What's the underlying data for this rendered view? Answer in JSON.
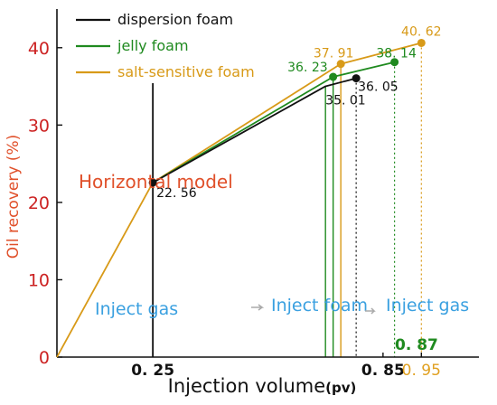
{
  "chart_data": {
    "type": "line",
    "title": "",
    "xlabel": "Injection volume",
    "xlabel_unit": "(pv)",
    "ylabel": "Oil recovery (%)",
    "xlim": [
      0,
      1.1
    ],
    "ylim": [
      0,
      45
    ],
    "xticks": [
      {
        "value": 0.25,
        "label": "0. 25",
        "color": "#111111"
      },
      {
        "value": 0.85,
        "label": "0. 85",
        "color": "#111111"
      },
      {
        "value": 0.95,
        "label": "0. 95",
        "color": "#e0a020"
      }
    ],
    "yticks": [
      0,
      10,
      20,
      30,
      40
    ],
    "legend": {
      "placement": "top-center",
      "entries": [
        {
          "label": "dispersion foam",
          "color": "#111111"
        },
        {
          "label": "jelly foam",
          "color": "#1f8a1f"
        },
        {
          "label": "salt-sensitive foam",
          "color": "#d89a18"
        }
      ]
    },
    "series": [
      {
        "name": "dispersion foam",
        "color": "#111111",
        "points": [
          [
            0.25,
            22.56
          ],
          [
            0.7,
            35.01
          ],
          [
            0.78,
            36.05
          ]
        ],
        "markers": [
          [
            0.25,
            22.56
          ],
          [
            0.78,
            36.05
          ]
        ]
      },
      {
        "name": "jelly foam",
        "color": "#1f8a1f",
        "points": [
          [
            0.25,
            22.56
          ],
          [
            0.72,
            36.23
          ],
          [
            0.88,
            38.14
          ]
        ],
        "markers": [
          [
            0.72,
            36.23
          ],
          [
            0.88,
            38.14
          ]
        ]
      },
      {
        "name": "salt-sensitive foam",
        "color": "#d89a18",
        "points": [
          [
            0.0,
            0.0
          ],
          [
            0.25,
            22.56
          ],
          [
            0.74,
            37.91
          ],
          [
            0.95,
            40.62
          ]
        ],
        "markers": [
          [
            0.74,
            37.91
          ],
          [
            0.95,
            40.62
          ]
        ]
      }
    ],
    "point_labels": [
      {
        "text": "22. 56",
        "x": 0.25,
        "y": 22.56,
        "color": "#111111"
      },
      {
        "text": "35. 01",
        "x": 0.7,
        "y": 35.01,
        "color": "#111111"
      },
      {
        "text": "36. 05",
        "x": 0.78,
        "y": 36.05,
        "color": "#111111"
      },
      {
        "text": "36. 23",
        "x": 0.72,
        "y": 36.23,
        "color": "#1f8a1f"
      },
      {
        "text": "38. 14",
        "x": 0.88,
        "y": 38.14,
        "color": "#1f8a1f"
      },
      {
        "text": "37. 91",
        "x": 0.74,
        "y": 37.91,
        "color": "#d89a18"
      },
      {
        "text": "40. 62",
        "x": 0.95,
        "y": 40.62,
        "color": "#d89a18"
      }
    ],
    "annotations": [
      {
        "text": "Horizontal model",
        "color": "#e0502a"
      },
      {
        "text": "Inject gas",
        "color": "#3aa0e0"
      },
      {
        "text": "Inject foam",
        "color": "#3aa0e0"
      },
      {
        "text": "Inject gas",
        "color": "#3aa0e0"
      },
      {
        "text": "0. 87",
        "color": "#1f8a1f"
      }
    ],
    "colors": {
      "axis": "#111111",
      "ylabel": "#e0502a",
      "ytick": "#cc2222"
    }
  }
}
